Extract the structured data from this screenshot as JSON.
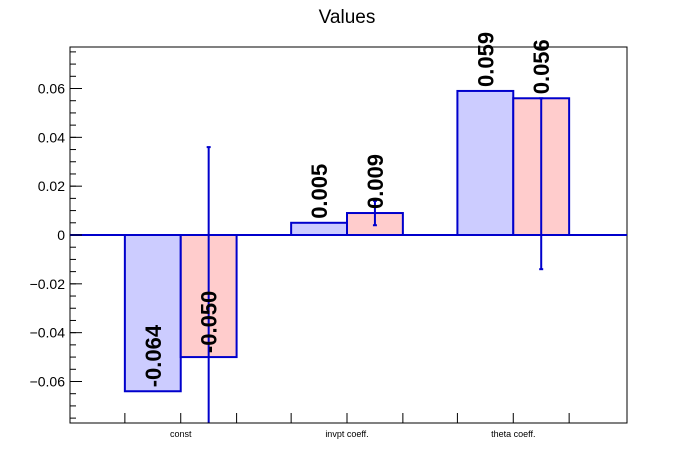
{
  "chart_data": {
    "type": "bar",
    "title": "Values",
    "xlabel": "",
    "ylabel": "",
    "categories": [
      "const",
      "invpt coeff.",
      "theta coeff."
    ],
    "series": [
      {
        "values": [
          -0.064,
          0.005,
          0.059
        ],
        "labels": [
          "-0.064",
          "0.005",
          "0.059"
        ],
        "fill": "#ccccff",
        "stroke": "#0000cc"
      },
      {
        "values": [
          -0.05,
          0.009,
          0.056
        ],
        "labels": [
          "-0.050",
          "0.009",
          "0.056"
        ],
        "errors": [
          [
            -0.078,
            0.036
          ],
          [
            0.004,
            0.014
          ],
          [
            -0.014,
            0.056
          ]
        ],
        "fill": "#ffcccc",
        "stroke": "#0000cc"
      }
    ],
    "ylim": [
      -0.077,
      0.077
    ],
    "yticks": [
      -0.06,
      -0.04,
      -0.02,
      0,
      0.02,
      0.04,
      0.06
    ],
    "ytick_labels": [
      "−0.06",
      "−0.04",
      "−0.02",
      "0",
      "0.02",
      "0.04",
      "0.06"
    ],
    "grid": false,
    "legend": "none",
    "colors": {
      "axis": "#000000",
      "zero_line": "#0000cc",
      "error_bar": "#0000cc"
    }
  }
}
